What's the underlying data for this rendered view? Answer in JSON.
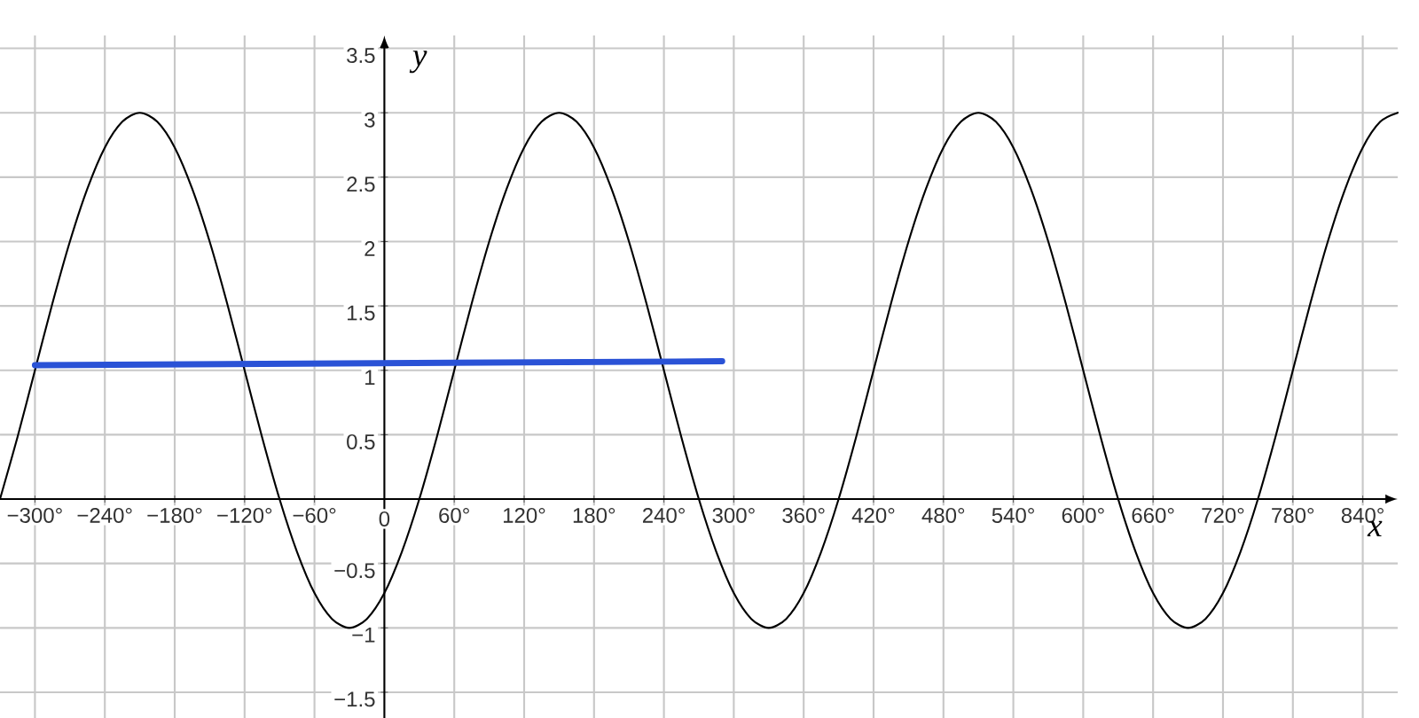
{
  "chart_data": {
    "type": "line",
    "xlabel": "x",
    "ylabel": "y",
    "xlim": [
      -330,
      870
    ],
    "ylim": [
      -1.7,
      3.6
    ],
    "xticks": [
      {
        "value": -300,
        "label": "−300°"
      },
      {
        "value": -240,
        "label": "−240°"
      },
      {
        "value": -180,
        "label": "−180°"
      },
      {
        "value": -120,
        "label": "−120°"
      },
      {
        "value": -60,
        "label": "−60°"
      },
      {
        "value": 0,
        "label": "0"
      },
      {
        "value": 60,
        "label": "60°"
      },
      {
        "value": 120,
        "label": "120°"
      },
      {
        "value": 180,
        "label": "180°"
      },
      {
        "value": 240,
        "label": "240°"
      },
      {
        "value": 300,
        "label": "300°"
      },
      {
        "value": 360,
        "label": "360°"
      },
      {
        "value": 420,
        "label": "420°"
      },
      {
        "value": 480,
        "label": "480°"
      },
      {
        "value": 540,
        "label": "540°"
      },
      {
        "value": 600,
        "label": "600°"
      },
      {
        "value": 660,
        "label": "660°"
      },
      {
        "value": 720,
        "label": "720°"
      },
      {
        "value": 780,
        "label": "780°"
      },
      {
        "value": 840,
        "label": "840°"
      }
    ],
    "yticks": [
      {
        "value": -1.5,
        "label": "−1.5"
      },
      {
        "value": -1,
        "label": "−1"
      },
      {
        "value": -0.5,
        "label": "−0.5"
      },
      0.5,
      1,
      1.5,
      2,
      2.5,
      3,
      3.5
    ],
    "grid": true,
    "line_style": "solid",
    "series": [
      {
        "color": "#000000",
        "x": [
          -330,
          -315,
          -300,
          -285,
          -270,
          -255,
          -240,
          -225,
          -210,
          -195,
          -180,
          -165,
          -150,
          -135,
          -120,
          -105,
          -90,
          -75,
          -60,
          -45,
          -30,
          -15,
          0,
          15,
          30,
          45,
          60,
          75,
          90,
          105,
          120,
          135,
          150,
          165,
          180,
          195,
          210,
          225,
          240,
          255,
          270,
          285,
          300,
          315,
          330,
          345,
          360,
          375,
          390,
          405,
          420,
          435,
          450,
          465,
          480,
          495,
          510,
          525,
          540,
          555,
          570,
          585,
          600,
          615,
          630,
          645,
          660,
          675,
          690,
          705,
          720,
          735,
          750,
          765,
          780,
          795,
          810,
          825,
          840,
          855,
          870
        ],
        "values": [
          0,
          0.48,
          1,
          1.52,
          2,
          2.41,
          2.73,
          2.93,
          3,
          2.93,
          2.73,
          2.41,
          2,
          1.52,
          1,
          0.48,
          0,
          -0.41,
          -0.73,
          -0.93,
          -1,
          -0.93,
          -0.73,
          -0.41,
          0,
          0.48,
          1,
          1.52,
          2,
          2.41,
          2.73,
          2.93,
          3,
          2.93,
          2.73,
          2.41,
          2,
          1.52,
          1,
          0.48,
          0,
          -0.41,
          -0.73,
          -0.93,
          -1,
          -0.93,
          -0.73,
          -0.41,
          0,
          0.48,
          1,
          1.52,
          2,
          2.41,
          2.73,
          2.93,
          3,
          2.93,
          2.73,
          2.41,
          2,
          1.52,
          1,
          0.48,
          0,
          -0.41,
          -0.73,
          -0.93,
          -1,
          -0.93,
          -0.73,
          -0.41,
          0,
          0.48,
          1,
          1.52,
          2,
          2.41,
          2.73,
          2.93,
          3
        ]
      },
      {
        "color": "#2a52d6",
        "x": [
          -300,
          290
        ],
        "values": [
          1.04,
          1.07
        ]
      }
    ]
  }
}
